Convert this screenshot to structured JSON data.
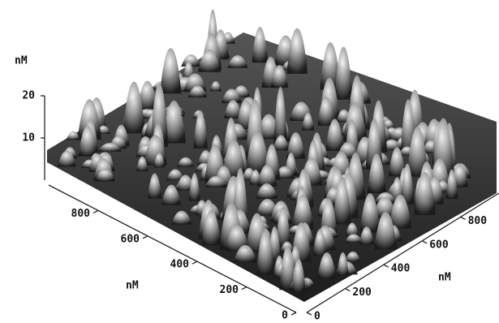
{
  "chart_data": {
    "type": "surface",
    "zlabel": "nM",
    "zlim": [
      0,
      20
    ],
    "zticks": [
      10,
      20
    ],
    "xlabel": "nM",
    "xlim": [
      0,
      1000
    ],
    "xticks": [
      0,
      200,
      400,
      600,
      800
    ],
    "ylabel": "nM",
    "ylim": [
      0,
      1000
    ],
    "yticks": [
      0,
      200,
      400,
      600,
      800
    ]
  }
}
